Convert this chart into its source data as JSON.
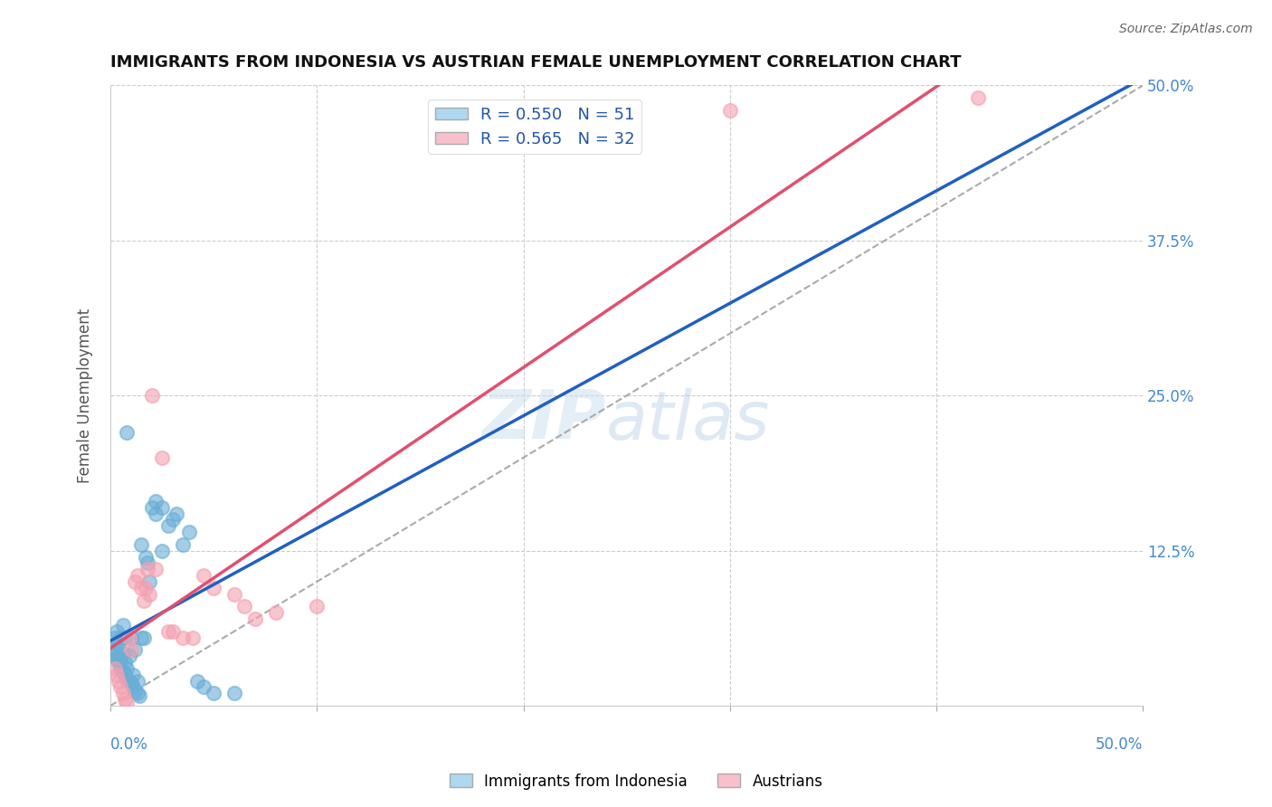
{
  "title": "IMMIGRANTS FROM INDONESIA VS AUSTRIAN FEMALE UNEMPLOYMENT CORRELATION CHART",
  "source": "Source: ZipAtlas.com",
  "ylabel": "Female Unemployment",
  "blue_r": 0.55,
  "blue_n": 51,
  "pink_r": 0.565,
  "pink_n": 32,
  "blue_color": "#6aaed6",
  "pink_color": "#f4a0b0",
  "blue_line_color": "#2060c0",
  "pink_line_color": "#e05070",
  "blue_legend_color": "#add8f0",
  "pink_legend_color": "#f8c0cc",
  "ytick_vals": [
    0.125,
    0.25,
    0.375,
    0.5
  ],
  "ytick_labels": [
    "12.5%",
    "25.0%",
    "37.5%",
    "50.0%"
  ],
  "xmax": 0.5,
  "ymax": 0.5,
  "blue_scatter_x": [
    0.001,
    0.002,
    0.002,
    0.003,
    0.003,
    0.003,
    0.004,
    0.004,
    0.005,
    0.005,
    0.005,
    0.006,
    0.006,
    0.006,
    0.007,
    0.007,
    0.007,
    0.008,
    0.008,
    0.009,
    0.009,
    0.01,
    0.01,
    0.011,
    0.011,
    0.012,
    0.012,
    0.013,
    0.013,
    0.014,
    0.015,
    0.015,
    0.016,
    0.017,
    0.018,
    0.019,
    0.02,
    0.022,
    0.022,
    0.025,
    0.025,
    0.028,
    0.03,
    0.032,
    0.035,
    0.038,
    0.042,
    0.045,
    0.05,
    0.06,
    0.008
  ],
  "blue_scatter_y": [
    0.04,
    0.045,
    0.055,
    0.038,
    0.042,
    0.06,
    0.035,
    0.05,
    0.03,
    0.038,
    0.055,
    0.028,
    0.042,
    0.065,
    0.025,
    0.035,
    0.055,
    0.022,
    0.03,
    0.02,
    0.04,
    0.018,
    0.055,
    0.015,
    0.025,
    0.012,
    0.045,
    0.01,
    0.02,
    0.008,
    0.055,
    0.13,
    0.055,
    0.12,
    0.115,
    0.1,
    0.16,
    0.155,
    0.165,
    0.16,
    0.125,
    0.145,
    0.15,
    0.155,
    0.13,
    0.14,
    0.02,
    0.015,
    0.01,
    0.01,
    0.22
  ],
  "pink_scatter_x": [
    0.002,
    0.003,
    0.004,
    0.005,
    0.006,
    0.007,
    0.008,
    0.009,
    0.01,
    0.012,
    0.013,
    0.015,
    0.016,
    0.017,
    0.018,
    0.019,
    0.02,
    0.022,
    0.025,
    0.028,
    0.03,
    0.035,
    0.04,
    0.045,
    0.05,
    0.06,
    0.065,
    0.07,
    0.08,
    0.1,
    0.3,
    0.42
  ],
  "pink_scatter_y": [
    0.03,
    0.025,
    0.02,
    0.015,
    0.01,
    0.005,
    0.002,
    0.055,
    0.045,
    0.1,
    0.105,
    0.095,
    0.085,
    0.095,
    0.11,
    0.09,
    0.25,
    0.11,
    0.2,
    0.06,
    0.06,
    0.055,
    0.055,
    0.105,
    0.095,
    0.09,
    0.08,
    0.07,
    0.075,
    0.08,
    0.48,
    0.49
  ],
  "legend_label_blue": "Immigrants from Indonesia",
  "legend_label_pink": "Austrians"
}
